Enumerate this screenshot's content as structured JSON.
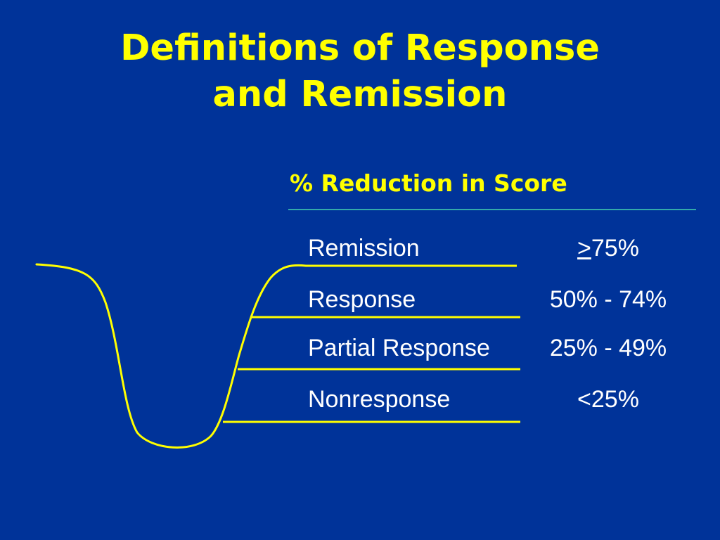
{
  "slide": {
    "title_line1": "Definitions of Response",
    "title_line2": "and Remission",
    "column_header": "% Reduction in Score",
    "accent_color": "#ffff00",
    "background_color": "#003399",
    "rows": [
      {
        "label": "Remission",
        "value_prefix": ">",
        "value": "75%"
      },
      {
        "label": "Response",
        "value_prefix": "",
        "value": "50% - 74%"
      },
      {
        "label": "Partial Response",
        "value_prefix": "",
        "value": "25% - 49%"
      },
      {
        "label": "Nonresponse",
        "value_prefix": "",
        "value": "<25%"
      }
    ]
  }
}
